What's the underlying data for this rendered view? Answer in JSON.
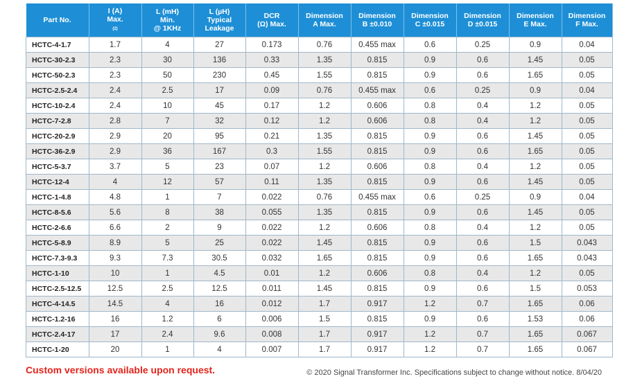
{
  "table": {
    "header": [
      [
        "Part No."
      ],
      [
        "I (A)",
        "Max.",
        "(2)"
      ],
      [
        "L (mH)",
        "Min.",
        "@ 1KHz"
      ],
      [
        "L (µH)",
        "Typical",
        "Leakage"
      ],
      [
        "DCR",
        "(Ω) Max."
      ],
      [
        "Dimension",
        "A Max."
      ],
      [
        "Dimension",
        "B ±0.010"
      ],
      [
        "Dimension",
        "C ±0.015"
      ],
      [
        "Dimension",
        "D ±0.015"
      ],
      [
        "Dimension",
        "E Max."
      ],
      [
        "Dimension",
        "F Max."
      ]
    ],
    "rows": [
      [
        "HCTC-4-1.7",
        "1.7",
        "4",
        "27",
        "0.173",
        "0.76",
        "0.455 max",
        "0.6",
        "0.25",
        "0.9",
        "0.04"
      ],
      [
        "HCTC-30-2.3",
        "2.3",
        "30",
        "136",
        "0.33",
        "1.35",
        "0.815",
        "0.9",
        "0.6",
        "1.45",
        "0.05"
      ],
      [
        "HCTC-50-2.3",
        "2.3",
        "50",
        "230",
        "0.45",
        "1.55",
        "0.815",
        "0.9",
        "0.6",
        "1.65",
        "0.05"
      ],
      [
        "HCTC-2.5-2.4",
        "2.4",
        "2.5",
        "17",
        "0.09",
        "0.76",
        "0.455 max",
        "0.6",
        "0.25",
        "0.9",
        "0.04"
      ],
      [
        "HCTC-10-2.4",
        "2.4",
        "10",
        "45",
        "0.17",
        "1.2",
        "0.606",
        "0.8",
        "0.4",
        "1.2",
        "0.05"
      ],
      [
        "HCTC-7-2.8",
        "2.8",
        "7",
        "32",
        "0.12",
        "1.2",
        "0.606",
        "0.8",
        "0.4",
        "1.2",
        "0.05"
      ],
      [
        "HCTC-20-2.9",
        "2.9",
        "20",
        "95",
        "0.21",
        "1.35",
        "0.815",
        "0.9",
        "0.6",
        "1.45",
        "0.05"
      ],
      [
        "HCTC-36-2.9",
        "2.9",
        "36",
        "167",
        "0.3",
        "1.55",
        "0.815",
        "0.9",
        "0.6",
        "1.65",
        "0.05"
      ],
      [
        "HCTC-5-3.7",
        "3.7",
        "5",
        "23",
        "0.07",
        "1.2",
        "0.606",
        "0.8",
        "0.4",
        "1.2",
        "0.05"
      ],
      [
        "HCTC-12-4",
        "4",
        "12",
        "57",
        "0.11",
        "1.35",
        "0.815",
        "0.9",
        "0.6",
        "1.45",
        "0.05"
      ],
      [
        "HCTC-1-4.8",
        "4.8",
        "1",
        "7",
        "0.022",
        "0.76",
        "0.455 max",
        "0.6",
        "0.25",
        "0.9",
        "0.04"
      ],
      [
        "HCTC-8-5.6",
        "5.6",
        "8",
        "38",
        "0.055",
        "1.35",
        "0.815",
        "0.9",
        "0.6",
        "1.45",
        "0.05"
      ],
      [
        "HCTC-2-6.6",
        "6.6",
        "2",
        "9",
        "0.022",
        "1.2",
        "0.606",
        "0.8",
        "0.4",
        "1.2",
        "0.05"
      ],
      [
        "HCTC-5-8.9",
        "8.9",
        "5",
        "25",
        "0.022",
        "1.45",
        "0.815",
        "0.9",
        "0.6",
        "1.5",
        "0.043"
      ],
      [
        "HCTC-7.3-9.3",
        "9.3",
        "7.3",
        "30.5",
        "0.032",
        "1.65",
        "0.815",
        "0.9",
        "0.6",
        "1.65",
        "0.043"
      ],
      [
        "HCTC-1-10",
        "10",
        "1",
        "4.5",
        "0.01",
        "1.2",
        "0.606",
        "0.8",
        "0.4",
        "1.2",
        "0.05"
      ],
      [
        "HCTC-2.5-12.5",
        "12.5",
        "2.5",
        "12.5",
        "0.011",
        "1.45",
        "0.815",
        "0.9",
        "0.6",
        "1.5",
        "0.053"
      ],
      [
        "HCTC-4-14.5",
        "14.5",
        "4",
        "16",
        "0.012",
        "1.7",
        "0.917",
        "1.2",
        "0.7",
        "1.65",
        "0.06"
      ],
      [
        "HCTC-1.2-16",
        "16",
        "1.2",
        "6",
        "0.006",
        "1.5",
        "0.815",
        "0.9",
        "0.6",
        "1.53",
        "0.06"
      ],
      [
        "HCTC-2.4-17",
        "17",
        "2.4",
        "9.6",
        "0.008",
        "1.7",
        "0.917",
        "1.2",
        "0.7",
        "1.65",
        "0.067"
      ],
      [
        "HCTC-1-20",
        "20",
        "1",
        "4",
        "0.007",
        "1.7",
        "0.917",
        "1.2",
        "0.7",
        "1.65",
        "0.067"
      ]
    ]
  },
  "footer": {
    "note": "Custom versions available upon request.",
    "copyright": "© 2020 Signal Transformer Inc. Specifications subject to change without notice. 8/04/20"
  }
}
